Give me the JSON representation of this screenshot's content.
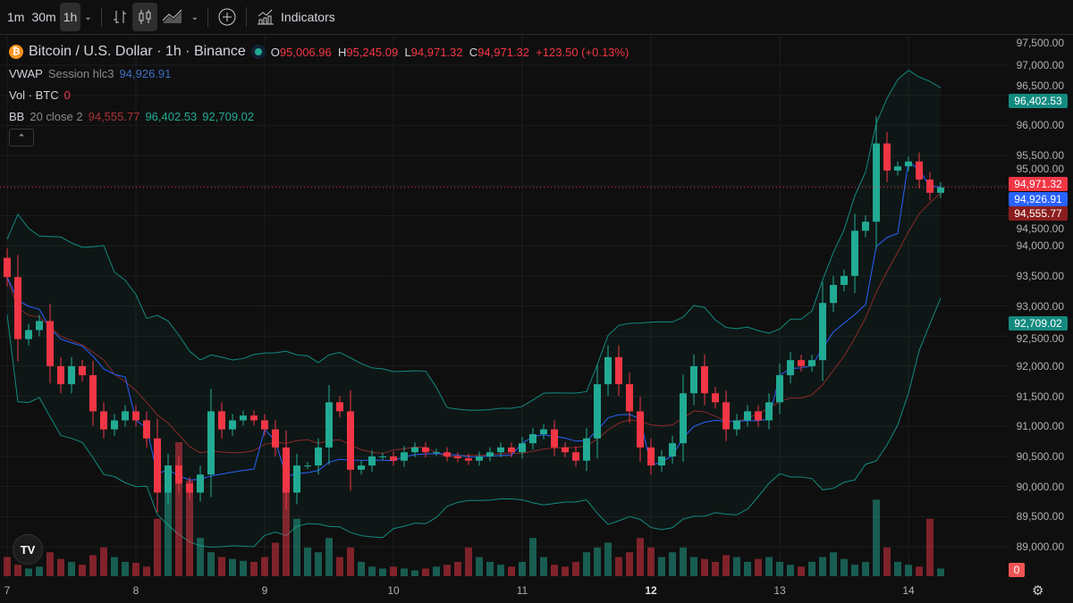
{
  "toolbar": {
    "intervals": [
      "1m",
      "30m",
      "1h"
    ],
    "active_interval": "1h",
    "indicators_label": "Indicators"
  },
  "legend": {
    "symbol": "Bitcoin / U.S. Dollar · 1h · Binance",
    "o_label": "O",
    "o": "95,006.96",
    "h_label": "H",
    "h": "95,245.09",
    "l_label": "L",
    "l": "94,971.32",
    "c_label": "C",
    "c": "94,971.32",
    "change": "+123.50 (+0.13%)",
    "vwap": {
      "name": "VWAP",
      "params": "Session hlc3",
      "value": "94,926.91"
    },
    "vol": {
      "name": "Vol · BTC",
      "value": "0"
    },
    "bb": {
      "name": "BB",
      "params": "20 close 2",
      "basis": "94,555.77",
      "upper": "96,402.53",
      "lower": "92,709.02"
    }
  },
  "price_axis": {
    "labels": [
      "97,500.00",
      "97,000.00",
      "96,500.00",
      "96,000.00",
      "95,500.00",
      "95,000.00",
      "94,500.00",
      "94,000.00",
      "93,500.00",
      "93,000.00",
      "92,500.00",
      "92,000.00",
      "91,500.00",
      "91,000.00",
      "90,500.00",
      "90,000.00",
      "89,500.00",
      "89,000.00"
    ],
    "tags": [
      {
        "text": "96,402.53",
        "value": 96402.53,
        "color": "#138a80"
      },
      {
        "text": "94,971.32",
        "value": 95030,
        "color": "#f23645"
      },
      {
        "text": "94,926.91",
        "value": 94780,
        "color": "#2962ff"
      },
      {
        "text": "94,555.77",
        "value": 94530,
        "color": "#8b1d1d"
      },
      {
        "text": "92,709.02",
        "value": 92709.02,
        "color": "#138a80"
      }
    ],
    "vol_tag": "0"
  },
  "chart_data": {
    "type": "candlestick",
    "symbol": "BTCUSD",
    "interval": "1h",
    "x_ticks": [
      "7",
      "8",
      "9",
      "10",
      "11",
      "12",
      "13",
      "14"
    ],
    "bold_tick": "12",
    "ylim": [
      88700,
      97600
    ],
    "last_price": 94971.32,
    "colors": {
      "up": "#22ab94",
      "down": "#f23645",
      "vwap": "#2962ff",
      "bb_basis": "#8b2a2a",
      "bb_band": "#138a80"
    },
    "open_first": 93800,
    "closes": [
      93480,
      92450,
      92600,
      92750,
      92000,
      91700,
      92000,
      91850,
      91250,
      90950,
      91100,
      91250,
      91100,
      90800,
      89900,
      90350,
      90050,
      89900,
      90200,
      91250,
      90950,
      91100,
      91180,
      91100,
      90950,
      90650,
      89900,
      90350,
      90350,
      90650,
      91400,
      91250,
      90280,
      90350,
      90500,
      90500,
      90430,
      90570,
      90650,
      90570,
      90570,
      90500,
      90470,
      90430,
      90500,
      90570,
      90650,
      90570,
      90720,
      90870,
      90950,
      90650,
      90570,
      90430,
      90800,
      91700,
      92150,
      91700,
      91250,
      90650,
      90350,
      90500,
      90720,
      91550,
      92000,
      91550,
      91400,
      90950,
      91100,
      91250,
      91100,
      91400,
      91850,
      92100,
      92000,
      92100,
      93050,
      93350,
      93500,
      94250,
      94400,
      95700,
      95250,
      95320,
      95400,
      95100,
      94880,
      94971
    ],
    "volume": [
      20,
      12,
      8,
      10,
      25,
      18,
      15,
      12,
      22,
      30,
      20,
      15,
      14,
      10,
      60,
      90,
      140,
      100,
      40,
      25,
      20,
      18,
      16,
      15,
      20,
      35,
      120,
      60,
      30,
      25,
      40,
      20,
      30,
      15,
      10,
      8,
      10,
      8,
      6,
      8,
      10,
      12,
      15,
      30,
      20,
      15,
      12,
      10,
      15,
      40,
      20,
      12,
      10,
      15,
      25,
      30,
      35,
      20,
      25,
      40,
      30,
      20,
      25,
      30,
      20,
      18,
      15,
      22,
      20,
      15,
      18,
      20,
      15,
      12,
      10,
      15,
      20,
      25,
      18,
      12,
      15,
      80,
      30,
      15,
      12,
      10,
      60,
      8
    ]
  }
}
